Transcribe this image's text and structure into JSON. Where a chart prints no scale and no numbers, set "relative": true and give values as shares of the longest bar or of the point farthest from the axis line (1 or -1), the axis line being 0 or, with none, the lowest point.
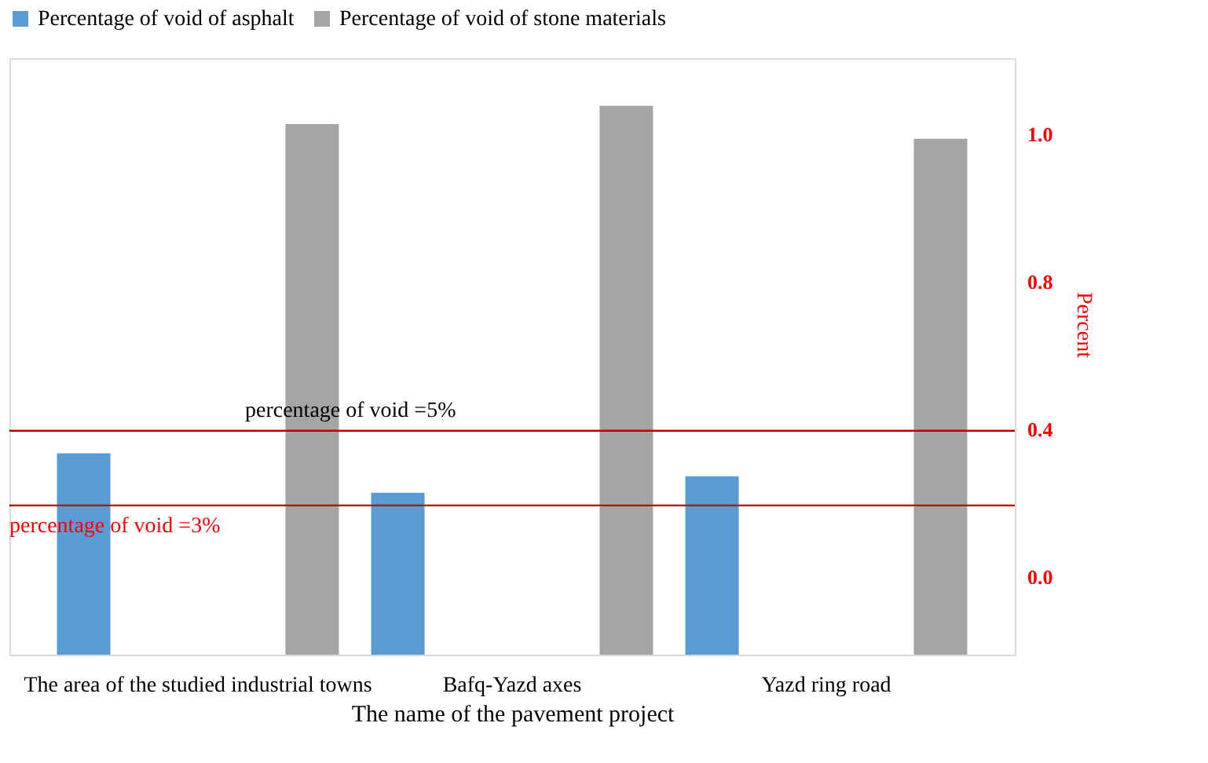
{
  "chart_data": {
    "type": "bar",
    "xlabel": "The name of the pavement project",
    "ylabel": "Percent",
    "relative": true,
    "categories": [
      "The area of the studied industrial towns",
      "Bafq-Yazd axes",
      "Yazd ring road"
    ],
    "series": [
      {
        "name": "Percentage of void of asphalt",
        "color": "#5b9bd5",
        "values": [
          0.367,
          0.295,
          0.325
        ]
      },
      {
        "name": "Percentage of void of stone materials",
        "color": "#a5a5a5",
        "values": [
          0.967,
          1,
          0.94
        ]
      }
    ],
    "ref_lines": [
      {
        "axis": "y",
        "value": 0.408,
        "color": "#c00000"
      },
      {
        "axis": "y",
        "value": 0.272,
        "color": "#c00000"
      }
    ],
    "annotations": [
      "percentage of void =5%",
      "percentage of void =3%",
      "1.0",
      "0.8",
      "0.4",
      "0.0"
    ],
    "legend": "top"
  }
}
